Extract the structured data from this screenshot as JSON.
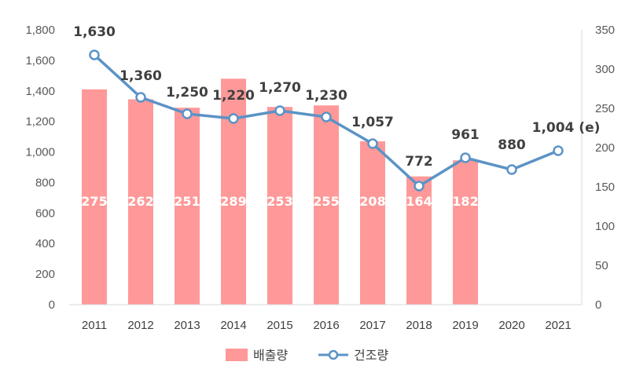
{
  "chart_data": {
    "type": "bar+line",
    "categories": [
      "2011",
      "2012",
      "2013",
      "2014",
      "2015",
      "2016",
      "2017",
      "2018",
      "2019",
      "2020",
      "2021"
    ],
    "series": [
      {
        "name": "배출량",
        "type": "bar",
        "axis": "left",
        "values": [
          1410,
          1345,
          1290,
          1480,
          1295,
          1305,
          1070,
          840,
          945,
          null,
          null
        ],
        "labels": [
          "275",
          "262",
          "251",
          "289",
          "253",
          "255",
          "208",
          "164",
          "182",
          null,
          null
        ],
        "color": "#ff9999"
      },
      {
        "name": "건조량",
        "type": "line",
        "axis": "right",
        "values": [
          318,
          264,
          243,
          237,
          247,
          239,
          205,
          151,
          187,
          172,
          196
        ],
        "labels": [
          "1,630",
          "1,360",
          "1,250",
          "1,220",
          "1,270",
          "1,230",
          "1,057",
          "772",
          "961",
          "880",
          "1,004 (e)"
        ],
        "color": "#5b93c6"
      }
    ],
    "y_left": {
      "min": 0,
      "max": 1800,
      "step": 200,
      "ticks": [
        "0",
        "200",
        "400",
        "600",
        "800",
        "1,000",
        "1,200",
        "1,400",
        "1,600",
        "1,800"
      ]
    },
    "y_right": {
      "min": 0,
      "max": 350,
      "step": 50,
      "ticks": [
        "0",
        "50",
        "100",
        "150",
        "200",
        "250",
        "300",
        "350"
      ]
    },
    "grid": false,
    "legend_position": "bottom"
  }
}
